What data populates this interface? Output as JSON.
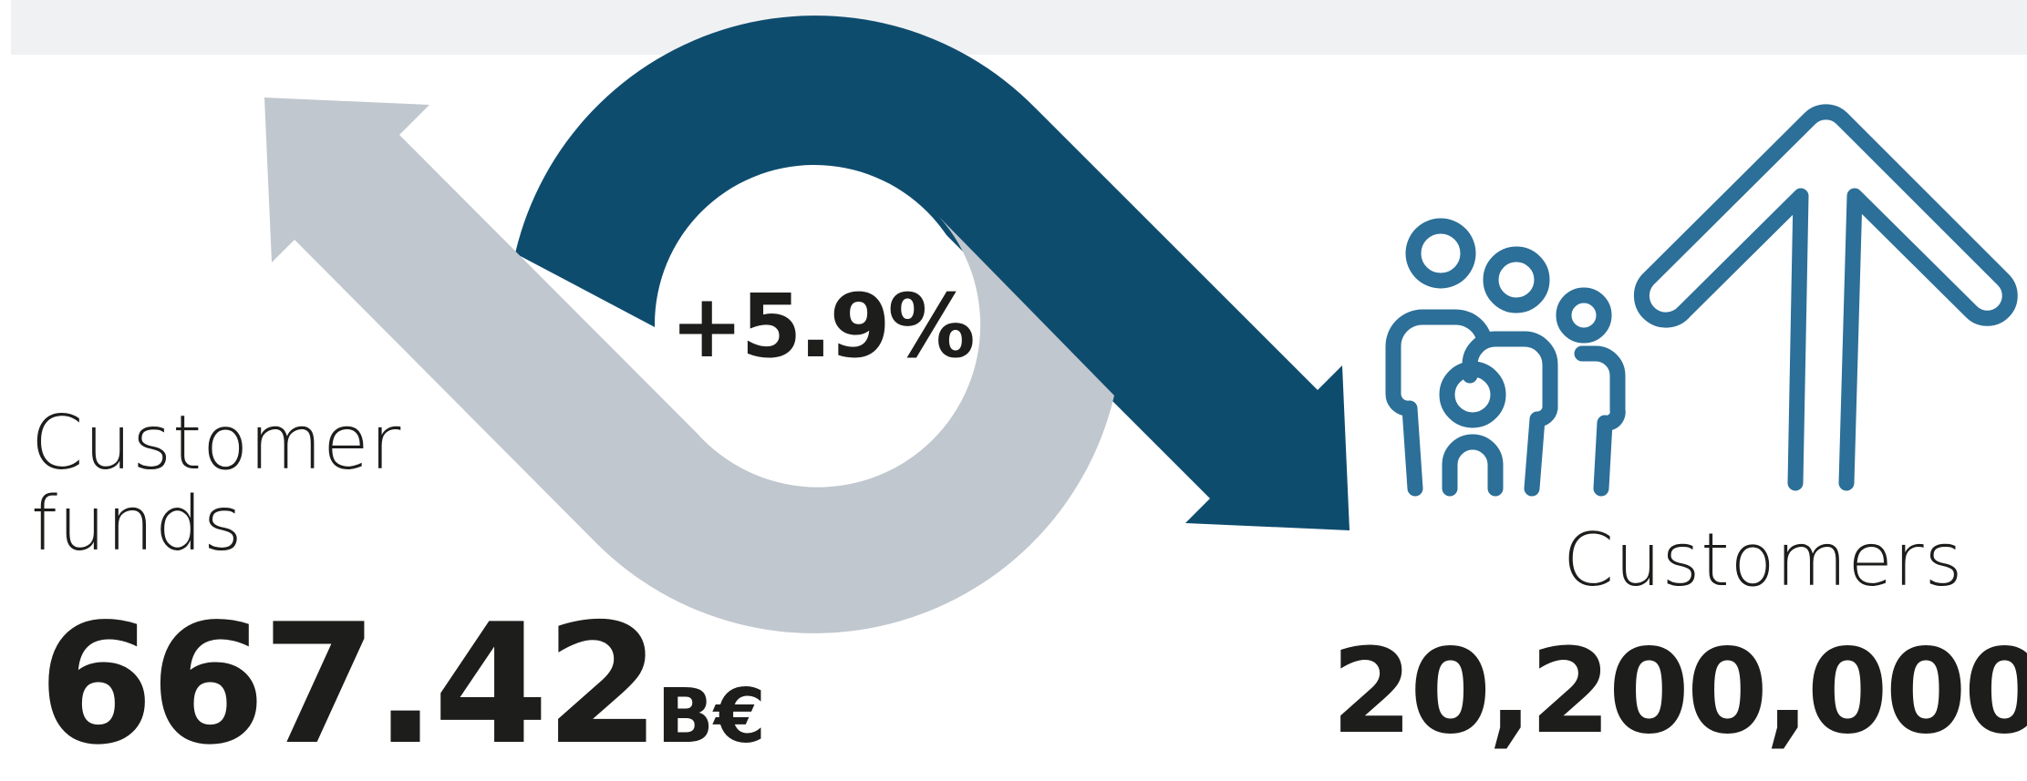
{
  "change": {
    "value": "+5.9%"
  },
  "funds": {
    "label_line1": "Customer",
    "label_line2": "funds",
    "amount": "667.42",
    "unit": "B€"
  },
  "customers": {
    "label": "Customers",
    "count": "20,200,000"
  },
  "colors": {
    "dark_blue": "#0e4c6e",
    "gray": "#c0c7ce",
    "icon_blue": "#2c6f98",
    "text": "#1d1d1b",
    "top_bar": "#f0f1f3"
  },
  "icons": [
    "family-icon",
    "double-up-arrow-icon"
  ]
}
